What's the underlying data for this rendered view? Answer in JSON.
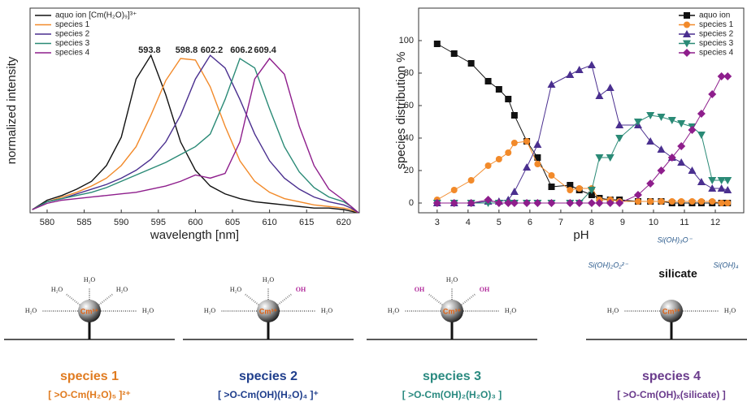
{
  "chart_data": [
    {
      "type": "line",
      "xlabel": "wavelength [nm]",
      "ylabel": "normalized intensity",
      "legend": "upper left",
      "xlim": [
        577.7,
        622.1
      ],
      "xticks": [
        580,
        585,
        590,
        595,
        600,
        605,
        610,
        615,
        620
      ],
      "ylim": [
        0,
        1.3
      ],
      "x": [
        578,
        580,
        582,
        584,
        586,
        588,
        590,
        592,
        594,
        596,
        598,
        600,
        602,
        604,
        606,
        608,
        610,
        612,
        614,
        616,
        618,
        620,
        621,
        622
      ],
      "series": [
        {
          "name": "aquo ion [Cm(H₂O)₉]³⁺",
          "color": "#111111",
          "values": [
            0.02,
            0.08,
            0.11,
            0.15,
            0.2,
            0.3,
            0.48,
            0.85,
            1.0,
            0.75,
            0.45,
            0.27,
            0.17,
            0.12,
            0.09,
            0.07,
            0.06,
            0.05,
            0.04,
            0.03,
            0.03,
            0.02,
            0.01,
            0
          ]
        },
        {
          "name": "species 1",
          "color": "#f28a2a",
          "values": [
            0.02,
            0.07,
            0.1,
            0.13,
            0.17,
            0.22,
            0.3,
            0.42,
            0.62,
            0.84,
            0.98,
            0.97,
            0.8,
            0.55,
            0.33,
            0.2,
            0.13,
            0.09,
            0.07,
            0.05,
            0.04,
            0.03,
            0.02,
            0
          ]
        },
        {
          "name": "species 2",
          "color": "#4a2f8f",
          "values": [
            0.02,
            0.07,
            0.09,
            0.12,
            0.15,
            0.18,
            0.22,
            0.27,
            0.34,
            0.45,
            0.62,
            0.85,
            1.0,
            0.92,
            0.72,
            0.5,
            0.33,
            0.22,
            0.15,
            0.1,
            0.07,
            0.05,
            0.03,
            0
          ]
        },
        {
          "name": "species 3",
          "color": "#2a8a76",
          "values": [
            0.02,
            0.07,
            0.09,
            0.11,
            0.13,
            0.16,
            0.2,
            0.24,
            0.28,
            0.32,
            0.37,
            0.42,
            0.5,
            0.72,
            0.98,
            0.92,
            0.66,
            0.42,
            0.26,
            0.16,
            0.1,
            0.07,
            0.04,
            0
          ]
        },
        {
          "name": "species 4",
          "color": "#8e1e8c",
          "values": [
            0.02,
            0.06,
            0.08,
            0.09,
            0.1,
            0.11,
            0.12,
            0.13,
            0.15,
            0.17,
            0.2,
            0.24,
            0.22,
            0.25,
            0.45,
            0.85,
            0.98,
            0.88,
            0.55,
            0.3,
            0.15,
            0.08,
            0.04,
            0
          ]
        }
      ],
      "annotations": [
        {
          "label": "593.8",
          "x": 593.8,
          "color": "#111111"
        },
        {
          "label": "598.8",
          "x": 598.8,
          "color": "#f28a2a"
        },
        {
          "label": "602.2",
          "x": 602.2,
          "color": "#4a2f8f"
        },
        {
          "label": "606.2",
          "x": 606.2,
          "color": "#2a8a76"
        },
        {
          "label": "609.4",
          "x": 609.4,
          "color": "#8e1e8c"
        }
      ]
    },
    {
      "type": "line",
      "xlabel": "pH",
      "ylabel": "species distribution %",
      "legend": "upper right",
      "xlim": [
        2.4,
        12.92
      ],
      "xticks": [
        3,
        4,
        5,
        6,
        7,
        8,
        9,
        10,
        11,
        12
      ],
      "ylim": [
        -6,
        120
      ],
      "yticks": [
        0,
        20,
        40,
        60,
        80,
        100
      ],
      "x": [
        3.0,
        3.55,
        4.1,
        4.65,
        5.0,
        5.3,
        5.5,
        5.9,
        6.25,
        6.7,
        7.3,
        7.6,
        8.0,
        8.25,
        8.6,
        8.9,
        9.5,
        9.9,
        10.25,
        10.6,
        10.9,
        11.25,
        11.55,
        11.9,
        12.2,
        12.4
      ],
      "series": [
        {
          "name": "aquo ion",
          "color": "#111111",
          "marker": "square",
          "values": [
            98,
            92,
            86,
            75,
            70,
            64,
            54,
            38,
            28,
            10,
            11,
            8,
            5,
            3,
            2,
            2,
            1,
            1,
            1,
            0,
            0,
            0,
            0,
            0,
            0,
            0
          ]
        },
        {
          "name": "species 1",
          "color": "#f28a2a",
          "marker": "circle",
          "values": [
            2,
            8,
            14,
            23,
            27,
            31,
            37,
            38,
            24,
            17,
            8,
            9,
            9,
            2,
            2,
            1,
            1,
            1,
            1,
            1,
            1,
            1,
            1,
            1,
            0,
            0
          ]
        },
        {
          "name": "species 2",
          "color": "#4a2f8f",
          "marker": "triangle-up",
          "values": [
            0,
            0,
            0,
            1,
            1,
            2,
            7,
            22,
            36,
            73,
            79,
            82,
            85,
            66,
            71,
            48,
            48,
            38,
            33,
            28,
            25,
            20,
            13,
            9,
            9,
            8
          ]
        },
        {
          "name": "species 3",
          "color": "#2a8a76",
          "marker": "triangle-down",
          "values": [
            0,
            0,
            0,
            0,
            0,
            0,
            0,
            0,
            0,
            0,
            0,
            0,
            8,
            28,
            28,
            40,
            50,
            54,
            53,
            51,
            49,
            47,
            42,
            14,
            14,
            14
          ]
        },
        {
          "name": "species 4",
          "color": "#8e1e8c",
          "marker": "diamond",
          "values": [
            0,
            0,
            0,
            2,
            0,
            0,
            0,
            0,
            0,
            0,
            0,
            0,
            0,
            0,
            0,
            0,
            5,
            12,
            20,
            28,
            35,
            45,
            55,
            67,
            78,
            78
          ]
        }
      ]
    }
  ],
  "diagram": {
    "center": "Cm³⁺",
    "panels": [
      {
        "ligands": [
          "H₂O",
          "H₂O",
          "H₂O",
          "H₂O",
          "H₂O"
        ],
        "name": "species 1",
        "formula": "[ >O-Cm(H₂O)₅ ]²⁺"
      },
      {
        "ligands": [
          "H₂O",
          "H₂O",
          "OH",
          "H₂O",
          "H₂O"
        ],
        "name": "species 2",
        "formula": "[ >O-Cm(OH)(H₂O)₄ ]⁺"
      },
      {
        "ligands": [
          "OH",
          "H₂O",
          "OH",
          "H₂O",
          "H₂O"
        ],
        "name": "species 3",
        "formula": "[ >O-Cm(OH)₂(H₂O)₃ ]"
      },
      {
        "ligands": [
          "H₂O",
          "H₂O"
        ],
        "name": "species 4",
        "formula": "[ >O-Cm(OH)ₓ(silicate) ]"
      }
    ],
    "silicate": {
      "title": "silicate",
      "forms": [
        "Si(OH)₃O⁻",
        "Si(OH)₂O₂²⁻",
        "Si(OH)₄"
      ]
    }
  }
}
